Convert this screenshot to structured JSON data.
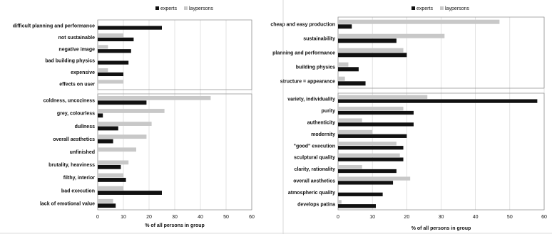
{
  "colors": {
    "experts": "#111111",
    "laypersons": "#c8c8c8",
    "grid": "#d0d0d0",
    "frame": "#888888"
  },
  "chart_data": [
    {
      "type": "bar",
      "orientation": "horizontal",
      "xlabel": "% of all persons in group",
      "xlim": [
        0,
        60
      ],
      "xticks": [
        0,
        10,
        20,
        30,
        40,
        50,
        60
      ],
      "legend": {
        "placement": "top-center",
        "entries": [
          "experts",
          "laypersons"
        ]
      },
      "series": [
        {
          "name": "experts"
        },
        {
          "name": "laypersons"
        }
      ],
      "groups": [
        {
          "categories": [
            "difficult planning and performance",
            "not sustainable",
            "negative image",
            "bad building physics",
            "expensive",
            "effects on user"
          ],
          "experts": [
            25,
            14,
            13,
            12,
            10,
            0
          ],
          "laypersons": [
            0,
            10,
            4,
            0,
            4,
            10
          ]
        },
        {
          "categories": [
            "coldness, uncoziness",
            "grey, colourless",
            "dullness",
            "overall aesthetics",
            "unfinished",
            "brutality, heaviness",
            "filthy, interior",
            "bad execution",
            "lack of emotional value"
          ],
          "experts": [
            19,
            2,
            8,
            6,
            0,
            9,
            11,
            25,
            7
          ],
          "laypersons": [
            44,
            26,
            21,
            19,
            15,
            12,
            10,
            10,
            6
          ]
        }
      ]
    },
    {
      "type": "bar",
      "orientation": "horizontal",
      "xlabel": "% of all persons in group",
      "xlim": [
        0,
        60
      ],
      "xticks": [
        0,
        10,
        20,
        30,
        40,
        50,
        60
      ],
      "legend": {
        "placement": "top-center",
        "entries": [
          "experts",
          "laypersons"
        ]
      },
      "series": [
        {
          "name": "experts"
        },
        {
          "name": "laypersons"
        }
      ],
      "groups": [
        {
          "categories": [
            "cheap and easy production",
            "sustainability",
            "planning and performance",
            "building physics",
            "structure = appearance"
          ],
          "experts": [
            4,
            17,
            20,
            6,
            8
          ],
          "laypersons": [
            47,
            31,
            19,
            3,
            2
          ]
        },
        {
          "categories": [
            "variety, individuality",
            "purity",
            "authenticity",
            "modernity",
            "\"good\" execution",
            "sculptural quality",
            "clarity, rationality",
            "overall aesthetics",
            "atmospheric quality",
            "develops patina"
          ],
          "experts": [
            58,
            22,
            22,
            20,
            19,
            19,
            17,
            16,
            13,
            11
          ],
          "laypersons": [
            26,
            19,
            7,
            10,
            17,
            18,
            7,
            21,
            0,
            1
          ]
        }
      ]
    }
  ]
}
